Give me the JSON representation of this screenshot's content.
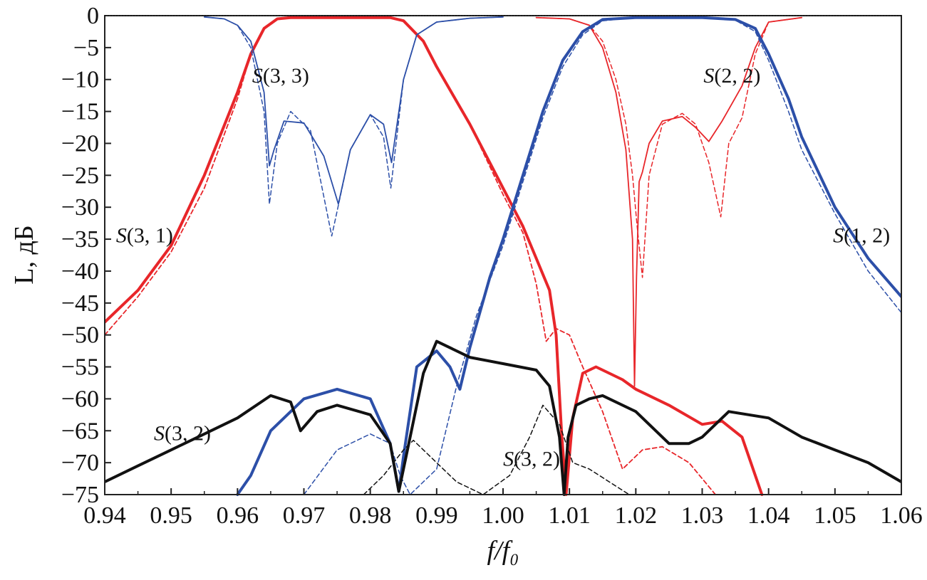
{
  "chart_data": {
    "type": "line",
    "title": "",
    "xlabel": "f/f₀",
    "ylabel": "L, дБ",
    "xlim": [
      0.94,
      1.06
    ],
    "ylim": [
      -75,
      0
    ],
    "xticks": [
      0.94,
      0.95,
      0.96,
      0.97,
      0.98,
      0.99,
      1.0,
      1.01,
      1.02,
      1.03,
      1.04,
      1.05,
      1.06
    ],
    "xtick_labels": [
      "0.94",
      "0.95",
      "0.96",
      "0.97",
      "0.98",
      "0.99",
      "1.00",
      "1.01",
      "1.02",
      "1.03",
      "1.04",
      "1.05",
      "1.06"
    ],
    "yticks": [
      0,
      -5,
      -10,
      -15,
      -20,
      -25,
      -30,
      -35,
      -40,
      -45,
      -50,
      -55,
      -60,
      -65,
      -70,
      -75
    ],
    "ytick_labels": [
      "0",
      "−5",
      "−10",
      "−15",
      "−20",
      "−25",
      "−30",
      "−35",
      "−40",
      "−45",
      "−50",
      "−55",
      "−60",
      "−65",
      "−70",
      "−75"
    ],
    "grid": false,
    "annotations": [
      {
        "text": "S(3, 3)",
        "x": 0.9665,
        "y": -10.5
      },
      {
        "text": "S(3, 1)",
        "x": 0.946,
        "y": -35.5
      },
      {
        "text": "S(2, 2)",
        "x": 1.0345,
        "y": -10.5
      },
      {
        "text": "S(1, 2)",
        "x": 1.054,
        "y": -35.5
      },
      {
        "text": "S(3, 2)",
        "x": 0.9517,
        "y": -66.5
      },
      {
        "text": "S(3, 2)",
        "x": 1.0043,
        "y": -70.5
      }
    ],
    "series": [
      {
        "name": "S(3,1) measured",
        "color": "#e8262a",
        "style": "solid",
        "width": 4,
        "x": [
          0.94,
          0.945,
          0.95,
          0.955,
          0.96,
          0.962,
          0.964,
          0.966,
          0.968,
          0.975,
          0.98,
          0.983,
          0.985,
          0.988,
          0.99,
          0.995,
          1.0,
          1.003,
          1.005,
          1.007,
          1.008,
          1.0088,
          1.0095,
          1.0105,
          1.012,
          1.014,
          1.016,
          1.018,
          1.02,
          1.025,
          1.03,
          1.033,
          1.036,
          1.039
        ],
        "y": [
          -48,
          -43,
          -36,
          -25,
          -12,
          -6,
          -2,
          -0.5,
          -0.3,
          -0.3,
          -0.3,
          -0.3,
          -0.8,
          -4,
          -8,
          -17,
          -27,
          -33,
          -38,
          -43,
          -50,
          -65,
          -75,
          -63,
          -56,
          -55,
          -56,
          -57,
          -58.5,
          -61,
          -64,
          -63.5,
          -66,
          -75
        ]
      },
      {
        "name": "S(3,1) calculated",
        "color": "#e8262a",
        "style": "dashed",
        "width": 1.8,
        "x": [
          0.94,
          0.945,
          0.95,
          0.955,
          0.96,
          0.962,
          0.964,
          0.966,
          0.968,
          0.975,
          0.98,
          0.983,
          0.985,
          0.988,
          0.99,
          0.995,
          1.0,
          1.003,
          1.005,
          1.0065,
          1.008,
          1.01,
          1.012,
          1.015,
          1.018,
          1.021,
          1.024,
          1.028,
          1.032
        ],
        "y": [
          -50,
          -44,
          -37,
          -27,
          -13,
          -6,
          -2,
          -0.5,
          -0.3,
          -0.3,
          -0.3,
          -0.3,
          -0.8,
          -4,
          -8,
          -17,
          -28,
          -34,
          -42,
          -51,
          -49,
          -50,
          -55,
          -62,
          -71,
          -68,
          -67.5,
          -70,
          -75
        ]
      },
      {
        "name": "S(3,3) measured",
        "color": "#2c4fa8",
        "style": "solid",
        "width": 1.8,
        "x": [
          0.955,
          0.958,
          0.96,
          0.962,
          0.964,
          0.9648,
          0.9655,
          0.967,
          0.97,
          0.973,
          0.9752,
          0.977,
          0.98,
          0.982,
          0.9832,
          0.985,
          0.987,
          0.99,
          0.995,
          1.0
        ],
        "y": [
          -0.2,
          -0.5,
          -1.5,
          -4,
          -12,
          -23.5,
          -21,
          -16.5,
          -16.8,
          -22,
          -29.5,
          -21,
          -15.5,
          -17,
          -23,
          -10,
          -3,
          -1,
          -0.4,
          -0.2
        ]
      },
      {
        "name": "S(3,3) calculated",
        "color": "#2c4fa8",
        "style": "dashed",
        "width": 1.5,
        "x": [
          0.955,
          0.958,
          0.96,
          0.962,
          0.964,
          0.9648,
          0.966,
          0.968,
          0.971,
          0.9742,
          0.977,
          0.98,
          0.982,
          0.9831,
          0.985,
          0.987,
          0.99,
          0.995,
          1.0
        ],
        "y": [
          -0.2,
          -0.5,
          -1.5,
          -5,
          -15,
          -29.5,
          -20,
          -15,
          -18,
          -34.5,
          -21,
          -15.5,
          -19,
          -27,
          -10,
          -3,
          -1,
          -0.4,
          -0.2
        ]
      },
      {
        "name": "S(2,2) measured",
        "color": "#e8262a",
        "style": "solid",
        "width": 1.8,
        "x": [
          1.005,
          1.01,
          1.013,
          1.015,
          1.017,
          1.0185,
          1.0195,
          1.0198,
          1.0201,
          1.0205,
          1.021,
          1.022,
          1.024,
          1.027,
          1.029,
          1.031,
          1.033,
          1.036,
          1.038,
          1.04,
          1.045
        ],
        "y": [
          -0.3,
          -0.5,
          -1.5,
          -5,
          -12,
          -21,
          -35,
          -58,
          -41,
          -26,
          -24.5,
          -20,
          -16.5,
          -15.8,
          -17.5,
          -19.7,
          -16.5,
          -11,
          -5,
          -1,
          -0.3
        ]
      },
      {
        "name": "S(2,2) calculated",
        "color": "#e8262a",
        "style": "dashed",
        "width": 1.5,
        "x": [
          1.005,
          1.01,
          1.013,
          1.015,
          1.017,
          1.0185,
          1.0195,
          1.0202,
          1.021,
          1.022,
          1.024,
          1.027,
          1.029,
          1.031,
          1.0328,
          1.034,
          1.036,
          1.038,
          1.04,
          1.045
        ],
        "y": [
          -0.3,
          -0.5,
          -1.5,
          -4,
          -10,
          -17,
          -25,
          -33,
          -41,
          -25,
          -17,
          -15.3,
          -17,
          -23,
          -31.5,
          -20,
          -16,
          -6,
          -1,
          -0.3
        ]
      },
      {
        "name": "S(1,2) measured",
        "color": "#2c4fa8",
        "style": "solid",
        "width": 4,
        "x": [
          0.96,
          0.962,
          0.965,
          0.97,
          0.975,
          0.98,
          0.983,
          0.9843,
          0.985,
          0.987,
          0.99,
          0.992,
          0.9935,
          0.995,
          0.998,
          1.0,
          1.003,
          1.006,
          1.009,
          1.012,
          1.015,
          1.02,
          1.03,
          1.035,
          1.038,
          1.04,
          1.043,
          1.045,
          1.05,
          1.055,
          1.06
        ],
        "y": [
          -75,
          -72,
          -65,
          -60,
          -58.5,
          -60,
          -67,
          -74.5,
          -69,
          -55,
          -52.5,
          -55,
          -58.5,
          -52,
          -41,
          -35,
          -25,
          -15,
          -7,
          -2.5,
          -0.6,
          -0.3,
          -0.3,
          -0.6,
          -2,
          -6,
          -13,
          -19,
          -30,
          -38,
          -44
        ]
      },
      {
        "name": "S(1,2) calculated",
        "color": "#2c4fa8",
        "style": "dashed",
        "width": 1.5,
        "x": [
          0.97,
          0.975,
          0.98,
          0.983,
          0.9845,
          0.986,
          0.99,
          0.993,
          0.996,
          1.0,
          1.003,
          1.006,
          1.009,
          1.012,
          1.015,
          1.02,
          1.03,
          1.035,
          1.038,
          1.04,
          1.043,
          1.045,
          1.05,
          1.055,
          1.06
        ],
        "y": [
          -75,
          -68,
          -65.5,
          -67,
          -72,
          -75,
          -71,
          -58,
          -47,
          -36,
          -26,
          -16,
          -8,
          -3,
          -0.8,
          -0.3,
          -0.3,
          -0.7,
          -2.5,
          -7,
          -15,
          -21,
          -31,
          -40,
          -46.5
        ]
      },
      {
        "name": "S(3,2) measured",
        "color": "#111111",
        "style": "solid",
        "width": 4,
        "x": [
          0.94,
          0.945,
          0.95,
          0.955,
          0.96,
          0.965,
          0.968,
          0.9695,
          0.972,
          0.975,
          0.98,
          0.983,
          0.9843,
          0.986,
          0.988,
          0.99,
          0.992,
          0.995,
          1.0,
          1.005,
          1.007,
          1.0085,
          1.0092,
          1.0098,
          1.011,
          1.013,
          1.015,
          1.02,
          1.025,
          1.028,
          1.03,
          1.034,
          1.04,
          1.045,
          1.05,
          1.055,
          1.06
        ],
        "y": [
          -73,
          -70.5,
          -68,
          -65.5,
          -63,
          -59.5,
          -60.5,
          -65,
          -62,
          -61,
          -62.5,
          -67,
          -74.5,
          -66,
          -56,
          -51,
          -52,
          -53.5,
          -54.5,
          -55.5,
          -58,
          -66,
          -75,
          -66,
          -61,
          -60,
          -59.5,
          -62,
          -67,
          -67,
          -66,
          -62,
          -63,
          -66,
          -68,
          -70,
          -73
        ]
      },
      {
        "name": "S(3,2) calculated",
        "color": "#111111",
        "style": "dashed",
        "width": 1.5,
        "x": [
          0.979,
          0.982,
          0.985,
          0.9865,
          0.989,
          0.993,
          0.997,
          1.001,
          1.004,
          1.006,
          1.0085,
          1.0105,
          1.013,
          1.016,
          1.019
        ],
        "y": [
          -75,
          -72,
          -68,
          -66.5,
          -69,
          -73,
          -75,
          -72,
          -66,
          -61,
          -64,
          -70,
          -71,
          -73,
          -75
        ]
      }
    ]
  }
}
